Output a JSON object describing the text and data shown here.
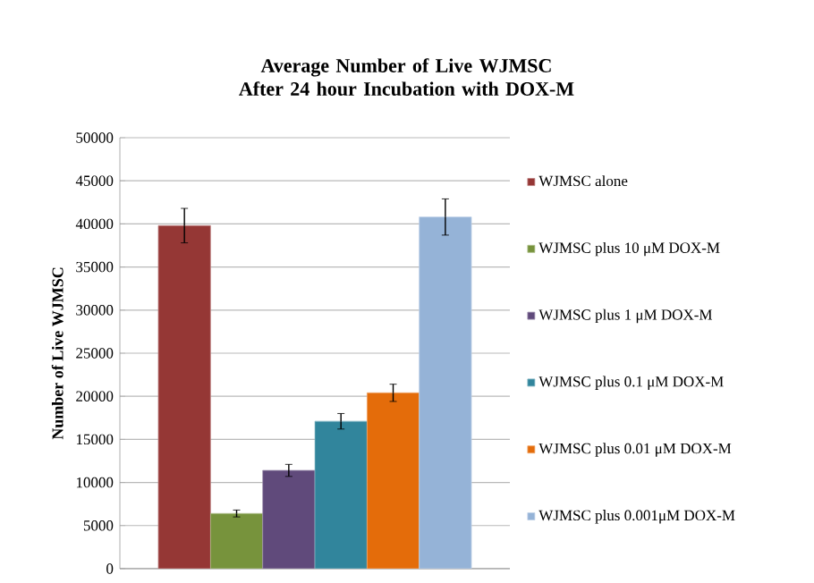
{
  "chart_data": {
    "type": "bar",
    "title": "Average Number of Live WJMSC After 24 hour Incubation with DOX-M",
    "ylabel": "Number of Live WJMSC",
    "categories": [
      null
    ],
    "series": [
      {
        "name": "WJMSC alone",
        "color": "#953735",
        "values": [
          39800
        ],
        "errors": [
          2000
        ]
      },
      {
        "name": "WJMSC plus 10 μM DOX-M",
        "color": "#77933c",
        "values": [
          6400
        ],
        "errors": [
          400
        ]
      },
      {
        "name": "WJMSC plus 1 μM DOX-M",
        "color": "#604a7b",
        "values": [
          11400
        ],
        "errors": [
          700
        ]
      },
      {
        "name": "WJMSC plus 0.1 μM DOX-M",
        "color": "#31859c",
        "values": [
          17100
        ],
        "errors": [
          900
        ]
      },
      {
        "name": "WJMSC plus 0.01 μM DOX-M",
        "color": "#e46c0a",
        "values": [
          20400
        ],
        "errors": [
          1000
        ]
      },
      {
        "name": "WJMSC plus 0.001μM DOX-M",
        "color": "#95b3d7",
        "values": [
          40800
        ],
        "errors": [
          2100
        ]
      }
    ],
    "ylim": [
      0,
      50000
    ],
    "yticks": [
      0,
      5000,
      10000,
      15000,
      20000,
      25000,
      30000,
      35000,
      40000,
      45000,
      50000
    ],
    "grid": "y",
    "legend": "right"
  }
}
